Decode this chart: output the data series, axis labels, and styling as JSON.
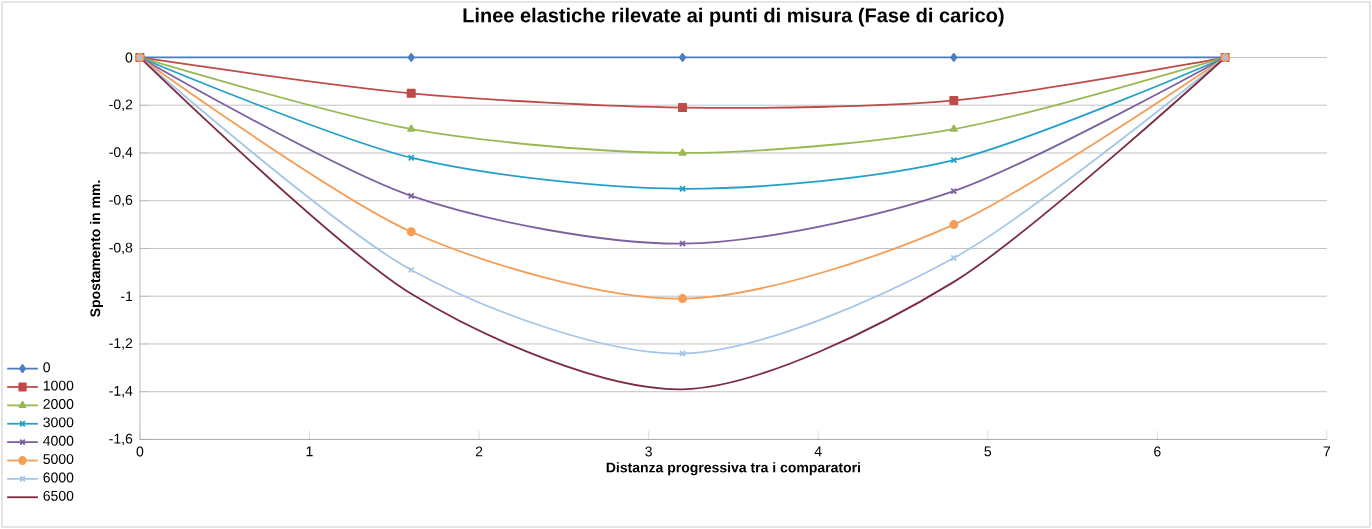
{
  "chart_data": {
    "type": "line",
    "title": "Linee elastiche rilevate ai punti di misura (Fase di carico)",
    "xlabel": "Distanza progressiva tra i comparatori",
    "ylabel": "Spostamento in mm.",
    "x": [
      0,
      1.6,
      3.2,
      4.8,
      6.4
    ],
    "series": [
      {
        "name": "0",
        "color": "#4a7ebb",
        "marker": "diamond",
        "values": [
          0,
          0,
          0,
          0,
          0
        ]
      },
      {
        "name": "1000",
        "color": "#be4b48",
        "marker": "square",
        "values": [
          0,
          -0.15,
          -0.21,
          -0.18,
          0
        ]
      },
      {
        "name": "2000",
        "color": "#98b954",
        "marker": "triangle",
        "values": [
          0,
          -0.3,
          -0.4,
          -0.3,
          0
        ]
      },
      {
        "name": "3000",
        "color": "#23a0c8",
        "marker": "cross",
        "values": [
          0,
          -0.42,
          -0.55,
          -0.43,
          0
        ]
      },
      {
        "name": "4000",
        "color": "#7d60a0",
        "marker": "cross",
        "values": [
          0,
          -0.58,
          -0.78,
          -0.56,
          0
        ]
      },
      {
        "name": "5000",
        "color": "#f59d56",
        "marker": "circle",
        "values": [
          0,
          -0.73,
          -1.01,
          -0.7,
          0
        ]
      },
      {
        "name": "6000",
        "color": "#a5c6e8",
        "marker": "cross",
        "values": [
          0,
          -0.89,
          -1.24,
          -0.84,
          0
        ]
      },
      {
        "name": "6500",
        "color": "#7a2c3e",
        "marker": "none",
        "values": [
          0,
          -0.99,
          -1.39,
          -0.94,
          0
        ]
      }
    ],
    "xlim": [
      0,
      7
    ],
    "xticks": [
      0,
      1,
      2,
      3,
      4,
      5,
      6,
      7
    ],
    "ylim": [
      -1.6,
      0
    ],
    "yticks": [
      0,
      {
        "value": -0.2,
        "label": "-0,2"
      },
      {
        "value": -0.4,
        "label": "-0,4"
      },
      {
        "value": -0.6,
        "label": "-0,6"
      },
      {
        "value": -0.8,
        "label": "-0,8"
      },
      -1,
      {
        "value": -1.2,
        "label": "-1,2"
      },
      {
        "value": -1.4,
        "label": "-1,4"
      },
      {
        "value": -1.6,
        "label": "-1,6"
      }
    ],
    "grid": "y",
    "legend": "left",
    "line_style": "solid"
  }
}
